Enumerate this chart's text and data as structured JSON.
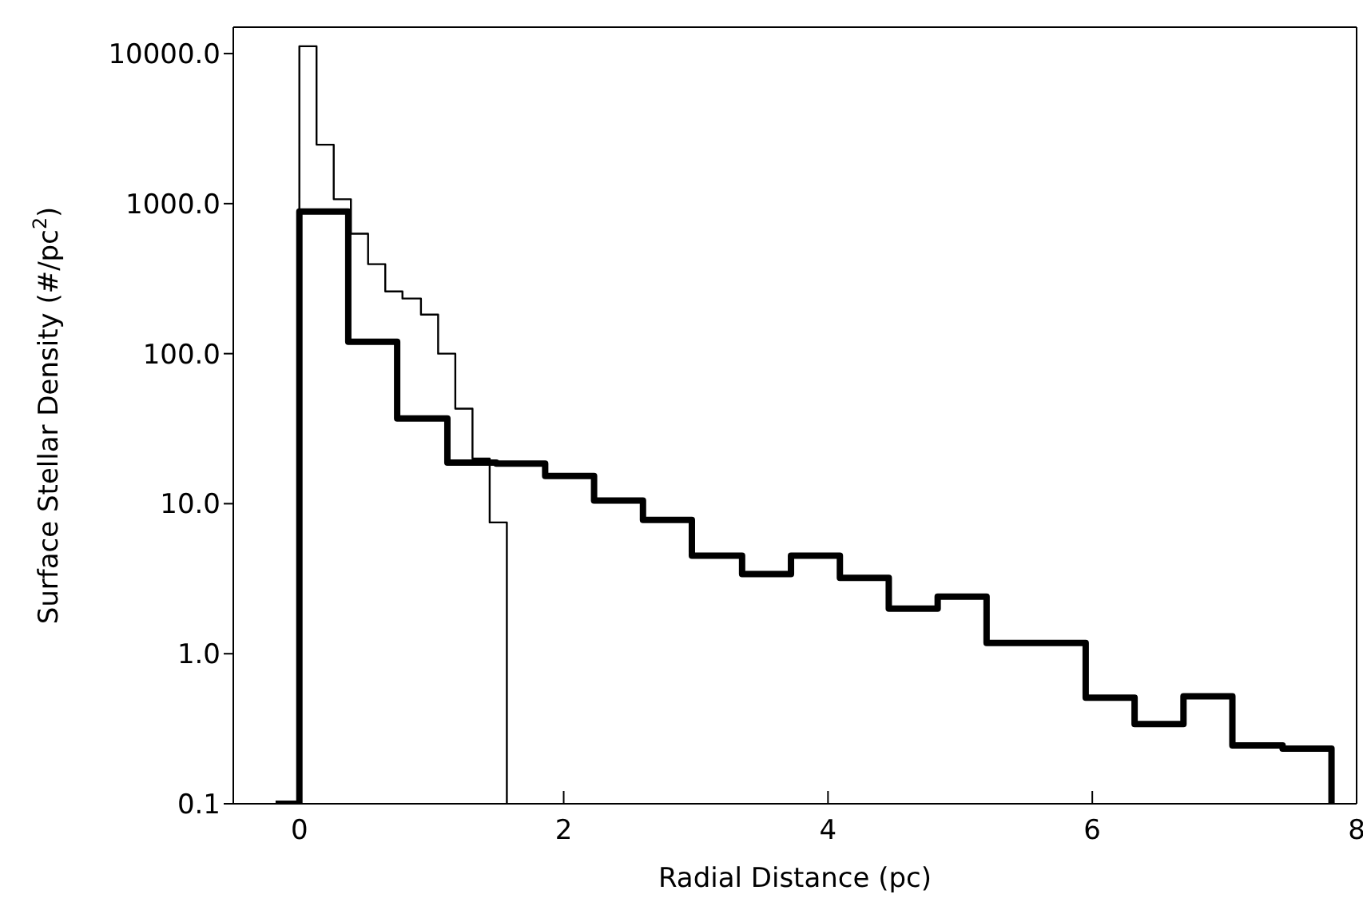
{
  "chart_data": {
    "type": "step",
    "xlabel": "Radial Distance (pc)",
    "ylabel": "Surface Stellar Density (#/pc$^{2}$)",
    "log": "y",
    "xlim": [
      -0.5,
      8
    ],
    "xticks": [
      0,
      2,
      4,
      6,
      8
    ],
    "ylim": [
      0.1,
      15000
    ],
    "yticks": [
      {
        "value": 0.1,
        "label": "0.1"
      },
      {
        "value": 1,
        "label": "1.0"
      },
      {
        "value": 10,
        "label": "10.0"
      },
      {
        "value": 100,
        "label": "100.0"
      },
      {
        "value": 1000,
        "label": "1000.0"
      },
      {
        "value": 10000,
        "label": "10000.0"
      }
    ],
    "series": [
      {
        "color": "#000000",
        "x": [
          0,
          0,
          0.13,
          0.26,
          0.39,
          0.52,
          0.65,
          0.78,
          0.92,
          1.05,
          1.18,
          1.31,
          1.44,
          1.57,
          1.57
        ],
        "values": [
          0.1,
          11200,
          2470,
          1070,
          630,
          395,
          260,
          233,
          182,
          100,
          43,
          20,
          7.5,
          7.5,
          0.1
        ]
      },
      {
        "color": "#000000",
        "x": [
          -0.18,
          0,
          0.37,
          0.74,
          1.12,
          1.49,
          1.86,
          2.23,
          2.6,
          2.97,
          3.35,
          3.72,
          4.09,
          4.46,
          4.83,
          5.2,
          5.58,
          5.95,
          6.32,
          6.69,
          7.06,
          7.44,
          7.81,
          7.81
        ],
        "values": [
          0.1,
          885,
          120,
          37,
          18.8,
          18.5,
          15.3,
          10.5,
          7.8,
          4.5,
          3.4,
          4.5,
          3.2,
          2.0,
          2.4,
          1.18,
          1.18,
          0.51,
          0.34,
          0.52,
          0.245,
          0.233,
          0.233,
          0.1
        ]
      }
    ]
  }
}
